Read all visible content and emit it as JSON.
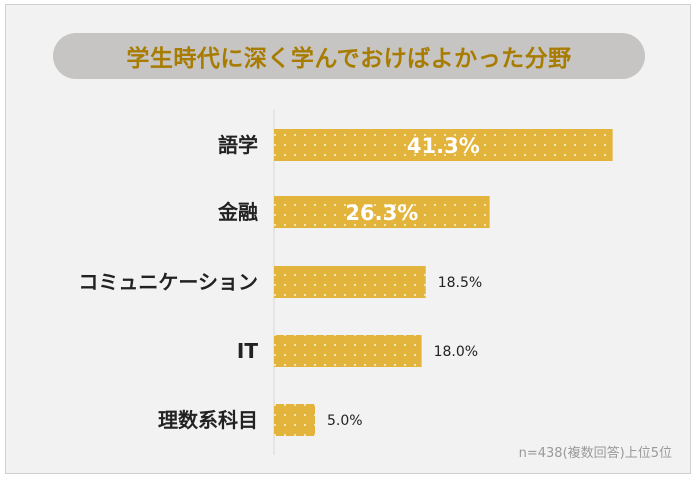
{
  "chart_data": {
    "type": "bar",
    "orientation": "horizontal",
    "title": "学生時代に深く学んでおけばよかった分野",
    "categories": [
      "語学",
      "金融",
      "コミュニケーション",
      "IT",
      "理数系科目"
    ],
    "values": [
      41.3,
      26.3,
      18.5,
      18.0,
      5.0
    ],
    "value_labels": [
      "41.3%",
      "26.3%",
      "18.5%",
      "18.0%",
      "5.0%"
    ],
    "value_label_position": [
      "inside",
      "inside",
      "outside",
      "outside",
      "outside"
    ],
    "xlabel": "",
    "ylabel": "",
    "xlim": [
      0,
      50
    ],
    "grid": false,
    "legend": "none",
    "note": "n=438(複数回答)上位5位"
  },
  "colors": {
    "bar": "#e2b43c",
    "bar_dots": "#f8e9bf",
    "title_text": "#a87c00",
    "title_bg": "#c6c5c3",
    "background": "#f2f2f2",
    "axis": "#d8d8d8"
  }
}
